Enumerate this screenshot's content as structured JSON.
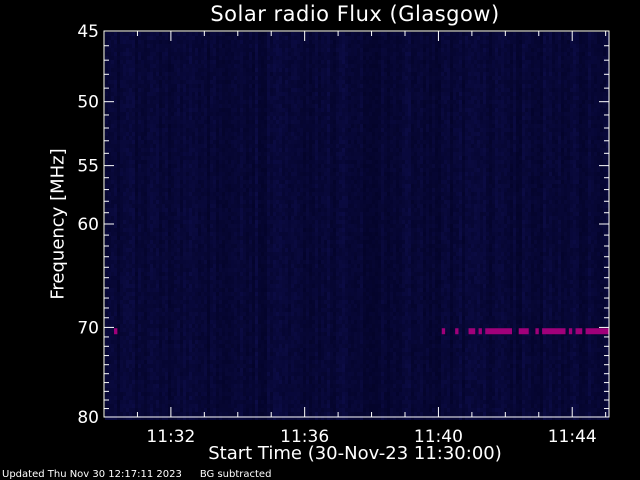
{
  "chart_data": {
    "type": "heatmap",
    "title": "Solar radio Flux (Glasgow)",
    "xlabel": "Start Time (30-Nov-23 11:30:00)",
    "ylabel": "Frequency [MHz]",
    "x_ticks": [
      "11:32",
      "11:36",
      "11:40",
      "11:44"
    ],
    "x_tick_minutes": [
      2,
      6,
      10,
      14
    ],
    "xlim_minutes": [
      0,
      15.1
    ],
    "y_ticks": [
      45,
      50,
      55,
      60,
      70,
      80
    ],
    "ylim": [
      45,
      80
    ],
    "y_scale": "log",
    "background_color": "#000000",
    "cell_color": "#0a0a46",
    "emission_color": "#a0007a",
    "emission_band_mhz": 70.4,
    "emission_segments_minutes": [
      [
        0.3,
        0.4
      ],
      [
        10.1,
        10.2
      ],
      [
        10.5,
        10.6
      ],
      [
        10.9,
        11.1
      ],
      [
        11.2,
        11.3
      ],
      [
        11.4,
        12.2
      ],
      [
        12.4,
        12.7
      ],
      [
        12.9,
        13.0
      ],
      [
        13.1,
        13.8
      ],
      [
        13.9,
        14.0
      ],
      [
        14.1,
        14.3
      ],
      [
        14.4,
        15.1
      ]
    ]
  },
  "footer": {
    "updated": "Updated Thu Nov 30 12:17:11 2023",
    "note": "BG subtracted"
  }
}
